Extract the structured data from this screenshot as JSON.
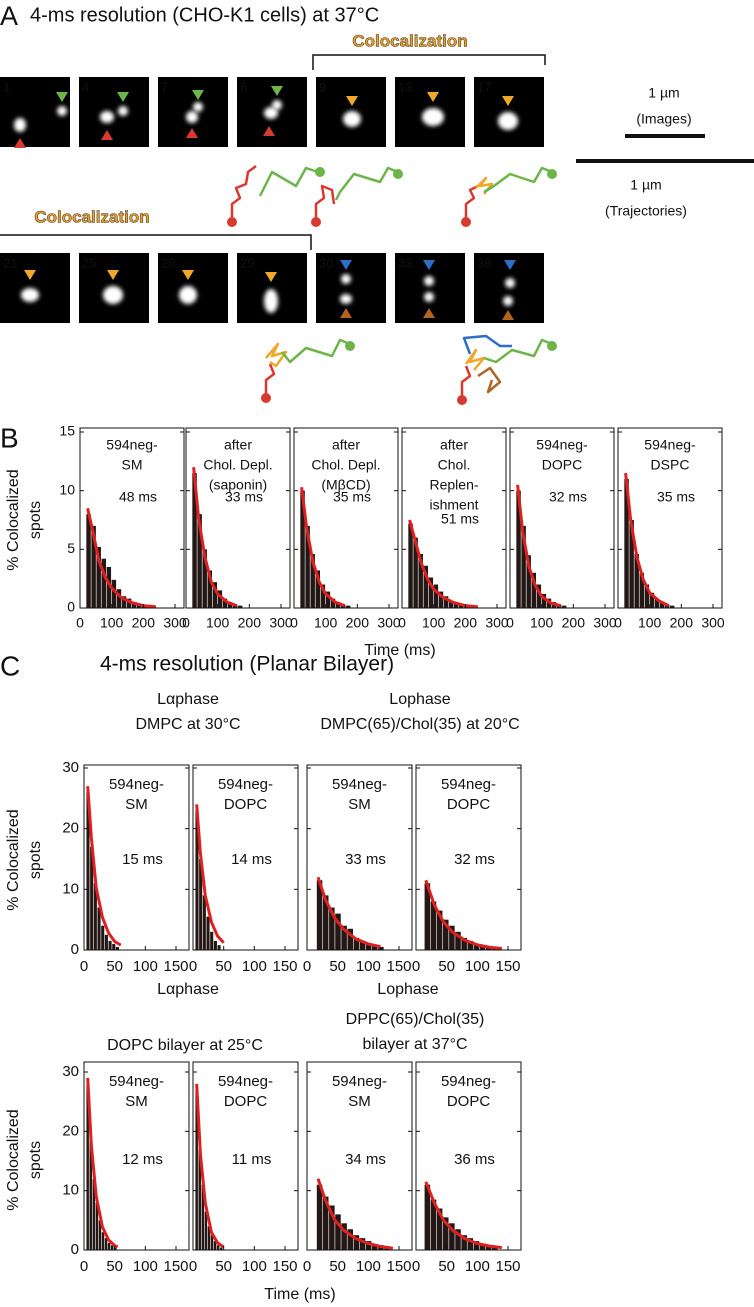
{
  "figure": {
    "panel_a": {
      "label": "A",
      "title": "4-ms resolution (CHO-K1 cells) at 37°C",
      "colocalization_top": "Colocalization",
      "colocalization_bottom": "Colocalization",
      "frames_top": [
        {
          "label": "1",
          "color": "#e0287a"
        },
        {
          "label": "4",
          "color": "#e0287a"
        },
        {
          "label": "7",
          "color": "#e0287a"
        },
        {
          "label": "8",
          "color": "#e0287a"
        },
        {
          "label": "9",
          "color": "#e8a030"
        },
        {
          "label": "13",
          "color": "#e8a030"
        },
        {
          "label": "17",
          "color": "#e8a030"
        }
      ],
      "frames_bottom": [
        {
          "label": "21",
          "color": "#e8a030"
        },
        {
          "label": "25",
          "color": "#e8a030"
        },
        {
          "label": "28",
          "color": "#e8a030"
        },
        {
          "label": "29",
          "color": "#e8a030"
        },
        {
          "label": "30",
          "color": "#e0287a"
        },
        {
          "label": "33",
          "color": "#e0287a"
        },
        {
          "label": "38",
          "color": "#e0287a"
        }
      ],
      "scale_images": [
        "1 µm",
        "(Images)"
      ],
      "scale_trajectories": [
        "1 µm",
        "(Trajectories)"
      ]
    },
    "panel_b": {
      "label": "B",
      "y_label": [
        "% Colocalized",
        "spots"
      ],
      "x_label": "Time (ms)"
    },
    "panel_c": {
      "label": "C",
      "title": "4-ms resolution (Planar Bilayer)",
      "headings": [
        [
          "Lαphase",
          "DMPC at 30°C"
        ],
        [
          "Lophase",
          "DMPC(65)/Chol(35) at 20°C"
        ],
        [
          "DOPC bilayer at 25°C"
        ],
        [
          "DPPC(65)/Chol(35)",
          "bilayer at 37°C"
        ]
      ],
      "phase_labels": [
        "Lαphase",
        "Lophase"
      ],
      "y_labels": [
        [
          "% Colocalized",
          "spots"
        ],
        [
          "% Colocalized",
          "spots"
        ]
      ],
      "x_label": "Time (ms)"
    }
  },
  "chart_data": [
    {
      "type": "histogram",
      "title_lines": [
        "594neg-",
        "SM"
      ],
      "annotation": "48 ms",
      "color": "#231815",
      "fit_color": "#e02020",
      "bins": [
        20,
        36,
        52,
        68,
        84,
        100,
        116,
        132,
        148,
        164,
        180,
        196,
        212
      ],
      "values": [
        8.0,
        7.0,
        5.2,
        4.2,
        3.5,
        2.4,
        1.6,
        1.0,
        0.8,
        0.5,
        0.3,
        0.2
      ],
      "fit": {
        "x": [
          24,
          40,
          60,
          80,
          100,
          130,
          160,
          200,
          240
        ],
        "values": [
          8.5,
          6.6,
          4.0,
          2.6,
          1.7,
          0.9,
          0.5,
          0.2,
          0.1
        ]
      },
      "xlim": [
        0,
        300
      ],
      "xticks": [
        0,
        100,
        200,
        300
      ],
      "ylim": [
        0,
        15
      ],
      "yticks": [
        0,
        5,
        10,
        15
      ]
    },
    {
      "type": "histogram",
      "title_lines": [
        "after",
        "Chol. Depl.",
        "(saponin)"
      ],
      "annotation": "33 ms",
      "color": "#231815",
      "fit_color": "#e02020",
      "bins": [
        20,
        36,
        52,
        68,
        84,
        100,
        116,
        132,
        148,
        164,
        180
      ],
      "values": [
        11.5,
        8.0,
        5.0,
        3.2,
        2.2,
        1.5,
        0.8,
        0.5,
        0.3,
        0.2
      ],
      "fit": {
        "x": [
          24,
          40,
          60,
          80,
          100,
          130,
          160
        ],
        "values": [
          12.0,
          7.6,
          4.3,
          2.2,
          1.2,
          0.5,
          0.2
        ]
      },
      "xlim": [
        0,
        300
      ],
      "xticks": [
        0,
        100,
        200,
        300
      ],
      "ylim": [
        0,
        15
      ],
      "yticks": [
        0,
        5,
        10,
        15
      ]
    },
    {
      "type": "histogram",
      "title_lines": [
        "after",
        "Chol. Depl.",
        "(MβCD)"
      ],
      "annotation": "35 ms",
      "color": "#231815",
      "fit_color": "#e02020",
      "bins": [
        20,
        36,
        52,
        68,
        84,
        100,
        116,
        132,
        148,
        164,
        180
      ],
      "values": [
        10.0,
        7.0,
        4.6,
        3.2,
        2.0,
        1.4,
        0.8,
        0.5,
        0.3,
        0.2
      ],
      "fit": {
        "x": [
          24,
          40,
          60,
          80,
          100,
          130,
          160
        ],
        "values": [
          10.3,
          6.8,
          3.9,
          2.2,
          1.2,
          0.5,
          0.2
        ]
      },
      "xlim": [
        0,
        300
      ],
      "xticks": [
        0,
        100,
        200,
        300
      ],
      "ylim": [
        0,
        15
      ],
      "yticks": [
        0,
        5,
        10,
        15
      ]
    },
    {
      "type": "histogram",
      "title_lines": [
        "after",
        "Chol.",
        "Replen-",
        "ishment"
      ],
      "annotation": "51 ms",
      "color": "#231815",
      "fit_color": "#e02020",
      "bins": [
        20,
        36,
        52,
        68,
        84,
        100,
        116,
        132,
        148,
        164,
        180,
        196,
        212
      ],
      "values": [
        7.2,
        6.0,
        4.6,
        3.6,
        2.6,
        2.0,
        1.4,
        1.0,
        0.6,
        0.4,
        0.3,
        0.2
      ],
      "fit": {
        "x": [
          24,
          40,
          60,
          80,
          100,
          130,
          160,
          200,
          240
        ],
        "values": [
          7.5,
          5.9,
          3.9,
          2.5,
          1.6,
          0.9,
          0.5,
          0.2,
          0.1
        ]
      },
      "xlim": [
        0,
        300
      ],
      "xticks": [
        0,
        100,
        200,
        300
      ],
      "ylim": [
        0,
        15
      ],
      "yticks": [
        0,
        5,
        10,
        15
      ]
    },
    {
      "type": "histogram",
      "title_lines": [
        "594neg-",
        "DOPC"
      ],
      "annotation": "32 ms",
      "color": "#231815",
      "fit_color": "#e02020",
      "bins": [
        20,
        36,
        52,
        68,
        84,
        100,
        116,
        132,
        148,
        164,
        180
      ],
      "values": [
        10.0,
        7.0,
        4.5,
        3.0,
        2.0,
        1.2,
        0.8,
        0.5,
        0.3,
        0.2
      ],
      "fit": {
        "x": [
          24,
          40,
          60,
          80,
          100,
          130,
          160
        ],
        "values": [
          10.5,
          6.5,
          3.5,
          1.9,
          1.0,
          0.4,
          0.2
        ]
      },
      "xlim": [
        0,
        300
      ],
      "xticks": [
        0,
        100,
        200,
        300
      ],
      "ylim": [
        0,
        15
      ],
      "yticks": [
        0,
        5,
        10,
        15
      ]
    },
    {
      "type": "histogram",
      "title_lines": [
        "594neg-",
        "DSPC"
      ],
      "annotation": "35 ms",
      "color": "#231815",
      "fit_color": "#e02020",
      "bins": [
        20,
        36,
        52,
        68,
        84,
        100,
        116,
        132,
        148,
        164,
        180
      ],
      "values": [
        11.0,
        7.5,
        4.6,
        3.0,
        2.0,
        1.3,
        0.8,
        0.5,
        0.3,
        0.2
      ],
      "fit": {
        "x": [
          24,
          40,
          60,
          80,
          100,
          130,
          160
        ],
        "values": [
          11.5,
          7.5,
          4.3,
          2.4,
          1.3,
          0.6,
          0.2
        ]
      },
      "xlim": [
        0,
        300
      ],
      "xticks": [
        0,
        100,
        200,
        300
      ],
      "ylim": [
        0,
        15
      ],
      "yticks": [
        0,
        5,
        10,
        15
      ]
    },
    {
      "type": "histogram",
      "title_lines": [
        "594neg-",
        "SM"
      ],
      "annotation": "15 ms",
      "color": "#231815",
      "fit_color": "#e02020",
      "bins": [
        4,
        10,
        16,
        22,
        28,
        34,
        40,
        46,
        52,
        58
      ],
      "values": [
        26,
        17,
        11,
        7,
        4,
        2.5,
        1.5,
        1,
        0.5
      ],
      "fit": {
        "x": [
          6,
          12,
          20,
          30,
          40,
          50,
          60
        ],
        "values": [
          27,
          18.5,
          10.2,
          5.4,
          2.8,
          1.4,
          0.8
        ]
      },
      "xlim": [
        0,
        150
      ],
      "xticks": [
        0,
        50,
        100,
        150
      ],
      "ylim": [
        0,
        30
      ],
      "yticks": [
        0,
        10,
        20,
        30
      ]
    },
    {
      "type": "histogram",
      "title_lines": [
        "594neg-",
        "DOPC"
      ],
      "annotation": "14 ms",
      "color": "#231815",
      "fit_color": "#e02020",
      "bins": [
        4,
        10,
        16,
        22,
        28,
        34,
        40,
        46
      ],
      "values": [
        23,
        15,
        9,
        5.5,
        3,
        1.5,
        0.8
      ],
      "fit": {
        "x": [
          6,
          12,
          20,
          30,
          40,
          50
        ],
        "values": [
          24,
          16,
          9,
          4.6,
          2.3,
          1.2
        ]
      },
      "xlim": [
        0,
        150
      ],
      "xticks": [
        0,
        50,
        100,
        150
      ],
      "ylim": [
        0,
        30
      ],
      "yticks": [
        0,
        10,
        20,
        30
      ]
    },
    {
      "type": "histogram",
      "title_lines": [
        "594neg-",
        "SM"
      ],
      "annotation": "33 ms",
      "color": "#231815",
      "fit_color": "#e02020",
      "bins": [
        16,
        26,
        36,
        46,
        56,
        66,
        76,
        86,
        96,
        106,
        116,
        126
      ],
      "values": [
        11.5,
        9,
        7,
        6,
        4,
        3.5,
        2,
        1.5,
        1,
        0.8,
        0.5
      ],
      "fit": {
        "x": [
          18,
          30,
          45,
          60,
          80,
          100,
          120
        ],
        "values": [
          12,
          8.3,
          5.3,
          3.4,
          1.8,
          1.0,
          0.55
        ]
      },
      "xlim": [
        0,
        150
      ],
      "xticks": [
        0,
        50,
        100,
        150
      ],
      "ylim": [
        0,
        30
      ],
      "yticks": [
        0,
        10,
        20,
        30
      ]
    },
    {
      "type": "histogram",
      "title_lines": [
        "594neg-",
        "DOPC"
      ],
      "annotation": "32 ms",
      "color": "#231815",
      "fit_color": "#e02020",
      "bins": [
        14,
        24,
        34,
        44,
        54,
        64,
        74,
        84,
        94,
        104,
        114,
        124,
        134
      ],
      "values": [
        11,
        8,
        6.5,
        5,
        4,
        3,
        2,
        1.5,
        1,
        0.8,
        0.5,
        0.3
      ],
      "fit": {
        "x": [
          16,
          30,
          45,
          60,
          80,
          100,
          120,
          140
        ],
        "values": [
          11.5,
          7.4,
          4.6,
          2.9,
          1.6,
          0.85,
          0.45,
          0.25
        ]
      },
      "xlim": [
        0,
        150
      ],
      "xticks": [
        0,
        50,
        100,
        150
      ],
      "ylim": [
        0,
        30
      ],
      "yticks": [
        0,
        10,
        20,
        30
      ]
    },
    {
      "type": "histogram",
      "title_lines": [
        "594neg-",
        "SM"
      ],
      "annotation": "12 ms",
      "color": "#231815",
      "fit_color": "#e02020",
      "bins": [
        4,
        9,
        14,
        19,
        24,
        29,
        34,
        39,
        44,
        49,
        54
      ],
      "values": [
        28,
        19,
        12,
        8,
        5,
        3,
        2,
        1.2,
        0.8,
        0.4
      ],
      "fit": {
        "x": [
          6,
          12,
          20,
          30,
          40,
          50,
          55
        ],
        "values": [
          29,
          17.6,
          9.0,
          3.9,
          1.7,
          0.75,
          0.5
        ]
      },
      "xlim": [
        0,
        150
      ],
      "xticks": [
        0,
        50,
        100,
        150
      ],
      "ylim": [
        0,
        30
      ],
      "yticks": [
        0,
        10,
        20,
        30
      ]
    },
    {
      "type": "histogram",
      "title_lines": [
        "594neg-",
        "DOPC"
      ],
      "annotation": "11 ms",
      "color": "#231815",
      "fit_color": "#e02020",
      "bins": [
        4,
        9,
        14,
        19,
        24,
        29,
        34,
        39,
        44,
        49
      ],
      "values": [
        27,
        17,
        11,
        6.5,
        4,
        2.5,
        1.5,
        0.8,
        0.4
      ],
      "fit": {
        "x": [
          6,
          12,
          20,
          30,
          40,
          50
        ],
        "values": [
          28,
          16.3,
          7.9,
          3.0,
          1.2,
          0.5
        ]
      },
      "xlim": [
        0,
        150
      ],
      "xticks": [
        0,
        50,
        100,
        150
      ],
      "ylim": [
        0,
        30
      ],
      "yticks": [
        0,
        10,
        20,
        30
      ]
    },
    {
      "type": "histogram",
      "title_lines": [
        "594neg-",
        "SM"
      ],
      "annotation": "34 ms",
      "color": "#231815",
      "fit_color": "#e02020",
      "bins": [
        16,
        26,
        36,
        46,
        56,
        66,
        76,
        86,
        96,
        106,
        116,
        126,
        136
      ],
      "values": [
        11,
        9,
        7.5,
        6,
        4.5,
        3.5,
        2.5,
        2,
        1.5,
        1,
        0.8,
        0.5
      ],
      "fit": {
        "x": [
          18,
          30,
          45,
          60,
          80,
          100,
          120,
          140
        ],
        "values": [
          12,
          8.4,
          5.1,
          3.3,
          1.9,
          1.1,
          0.6,
          0.3
        ]
      },
      "xlim": [
        0,
        150
      ],
      "xticks": [
        0,
        50,
        100,
        150
      ],
      "ylim": [
        0,
        30
      ],
      "yticks": [
        0,
        10,
        20,
        30
      ]
    },
    {
      "type": "histogram",
      "title_lines": [
        "594neg-",
        "DOPC"
      ],
      "annotation": "36 ms",
      "color": "#231815",
      "fit_color": "#e02020",
      "bins": [
        14,
        24,
        34,
        44,
        54,
        64,
        74,
        84,
        94,
        104,
        114,
        124,
        134
      ],
      "values": [
        11,
        8.5,
        7,
        5.5,
        4.5,
        3.5,
        2.5,
        2,
        1.5,
        1,
        0.7,
        0.4
      ],
      "fit": {
        "x": [
          16,
          30,
          45,
          60,
          80,
          100,
          120,
          140
        ],
        "values": [
          11.5,
          7.9,
          5.0,
          3.3,
          1.9,
          1.1,
          0.65,
          0.4
        ]
      },
      "xlim": [
        0,
        150
      ],
      "xticks": [
        0,
        50,
        100,
        150
      ],
      "ylim": [
        0,
        30
      ],
      "yticks": [
        0,
        10,
        20,
        30
      ]
    }
  ]
}
